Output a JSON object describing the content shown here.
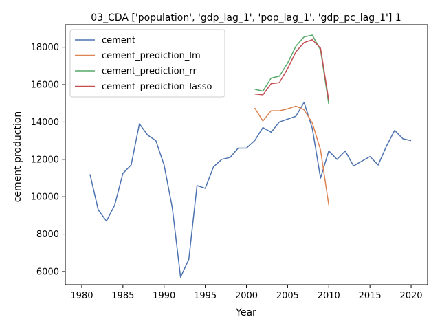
{
  "chart_data": {
    "type": "line",
    "title": "03_CDA ['population', 'gdp_lag_1', 'pop_lag_1', 'gdp_pc_lag_1'] 1",
    "xlabel": "Year",
    "ylabel": "cement production",
    "xlim": [
      1978,
      2022
    ],
    "ylim": [
      5300,
      19200
    ],
    "xticks": [
      1980,
      1985,
      1990,
      1995,
      2000,
      2005,
      2010,
      2015,
      2020
    ],
    "yticks": [
      6000,
      8000,
      10000,
      12000,
      14000,
      16000,
      18000
    ],
    "grid": false,
    "legend_position": "top-left",
    "series": [
      {
        "name": "cement",
        "color": "#4c72b0",
        "x": [
          1981,
          1982,
          1983,
          1984,
          1985,
          1986,
          1987,
          1988,
          1989,
          1990,
          1991,
          1992,
          1993,
          1994,
          1995,
          1996,
          1997,
          1998,
          1999,
          2000,
          2001,
          2002,
          2003,
          2004,
          2005,
          2006,
          2007,
          2008,
          2009,
          2010,
          2011,
          2012,
          2013,
          2014,
          2015,
          2016,
          2017,
          2018,
          2019,
          2020
        ],
        "y": [
          11200,
          9300,
          8700,
          9550,
          11250,
          11700,
          13900,
          13300,
          13000,
          11700,
          9400,
          5700,
          6650,
          10600,
          10450,
          11600,
          12000,
          12100,
          12600,
          12600,
          13000,
          13700,
          13450,
          14000,
          14150,
          14300,
          15050,
          13650,
          11000,
          12450,
          12000,
          12450,
          11650,
          11900,
          12150,
          11700,
          12700,
          13550,
          13100,
          13000
        ]
      },
      {
        "name": "cement_prediction_lm",
        "color": "#dd8452",
        "x": [
          2001,
          2002,
          2003,
          2004,
          2005,
          2006,
          2007,
          2008,
          2009,
          2010
        ],
        "y": [
          14750,
          14050,
          14600,
          14600,
          14700,
          14850,
          14650,
          13950,
          12500,
          9550
        ]
      },
      {
        "name": "cement_prediction_rr",
        "color": "#55a868",
        "x": [
          2001,
          2002,
          2003,
          2004,
          2005,
          2006,
          2007,
          2008,
          2009,
          2010
        ],
        "y": [
          15750,
          15650,
          16350,
          16450,
          17150,
          18050,
          18550,
          18650,
          17850,
          14950
        ]
      },
      {
        "name": "cement_prediction_lasso",
        "color": "#c44e52",
        "x": [
          2001,
          2002,
          2003,
          2004,
          2005,
          2006,
          2007,
          2008,
          2009,
          2010
        ],
        "y": [
          15500,
          15450,
          16050,
          16100,
          16850,
          17750,
          18250,
          18400,
          17950,
          15150
        ]
      }
    ]
  }
}
